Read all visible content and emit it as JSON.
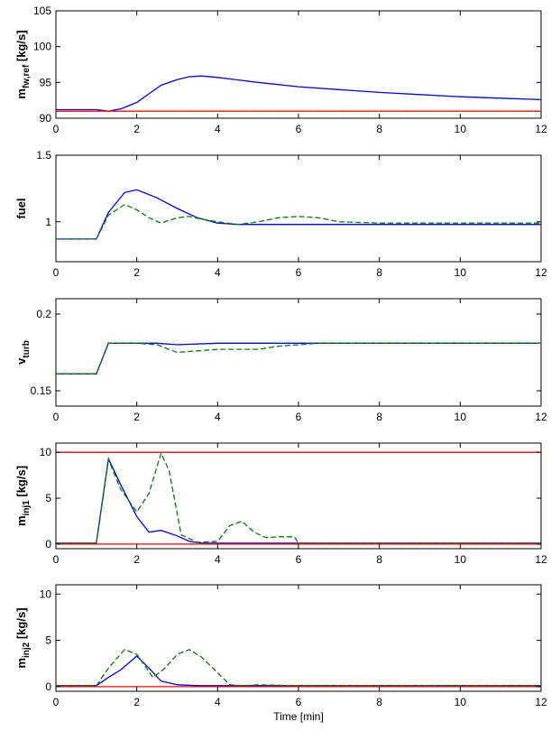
{
  "colors": {
    "model": "#0000ff",
    "plant": "#007f00",
    "constraint": "#ff0000",
    "axes": "#000000",
    "background": "#ffffff"
  },
  "chart_data": [
    {
      "type": "line",
      "ylabel_main": "m",
      "ylabel_sub": "fw,ref",
      "ylabel_unit": "[kg/s]",
      "xlim": [
        0,
        12
      ],
      "ylim": [
        90,
        105
      ],
      "xticks": [
        0,
        2,
        4,
        6,
        8,
        10,
        12
      ],
      "yticks": [
        90,
        95,
        100,
        105
      ],
      "series": [
        {
          "style": "solid",
          "color": "#0000ff",
          "x": [
            0,
            1,
            1.3,
            1.6,
            2,
            2.3,
            2.6,
            3,
            3.3,
            3.6,
            4,
            5,
            6,
            7,
            8,
            9,
            10,
            11,
            12
          ],
          "y": [
            91.2,
            91.2,
            91.0,
            91.3,
            92.2,
            93.4,
            94.6,
            95.4,
            95.8,
            95.9,
            95.7,
            95.0,
            94.4,
            94.0,
            93.6,
            93.3,
            93.0,
            92.8,
            92.6
          ]
        },
        {
          "style": "dashed",
          "color": "#007f00",
          "x": [
            0,
            12
          ],
          "y": [
            91.0,
            91.0
          ]
        },
        {
          "style": "solid",
          "color": "#ff0000",
          "x": [
            0,
            12
          ],
          "y": [
            91.0,
            91.0
          ]
        }
      ]
    },
    {
      "type": "line",
      "ylabel_main": "fuel",
      "ylabel_sub": "",
      "ylabel_unit": "",
      "xlim": [
        0,
        12
      ],
      "ylim": [
        0.7,
        1.5
      ],
      "xticks": [
        0,
        2,
        4,
        6,
        8,
        10,
        12
      ],
      "yticks": [
        1,
        1.5
      ],
      "series": [
        {
          "style": "solid",
          "color": "#0000ff",
          "x": [
            0,
            1,
            1.3,
            1.7,
            2,
            2.5,
            3,
            3.5,
            4,
            4.5,
            5,
            6,
            7,
            8,
            9,
            10,
            11,
            12
          ],
          "y": [
            0.87,
            0.87,
            1.07,
            1.22,
            1.24,
            1.18,
            1.1,
            1.03,
            0.99,
            0.98,
            0.98,
            0.98,
            0.98,
            0.98,
            0.98,
            0.98,
            0.98,
            0.98
          ]
        },
        {
          "style": "dashed",
          "color": "#007f00",
          "x": [
            0,
            1,
            1.3,
            1.7,
            2,
            2.3,
            2.6,
            3,
            3.3,
            3.6,
            4,
            4.5,
            5,
            5.5,
            6,
            6.5,
            7,
            8,
            9,
            10,
            11,
            12
          ],
          "y": [
            0.87,
            0.87,
            1.05,
            1.13,
            1.09,
            1.03,
            0.99,
            1.03,
            1.04,
            1.02,
            1.0,
            0.98,
            1.0,
            1.03,
            1.04,
            1.03,
            1.0,
            0.99,
            0.99,
            0.99,
            0.99,
            0.99
          ]
        }
      ]
    },
    {
      "type": "line",
      "ylabel_main": "v",
      "ylabel_sub": "turb",
      "ylabel_unit": "",
      "xlim": [
        0,
        12
      ],
      "ylim": [
        0.14,
        0.21
      ],
      "xticks": [
        0,
        2,
        4,
        6,
        8,
        10,
        12
      ],
      "yticks": [
        0.15,
        0.2
      ],
      "series": [
        {
          "style": "solid",
          "color": "#0000ff",
          "x": [
            0,
            1,
            1.3,
            2,
            2.5,
            3,
            4,
            5,
            6,
            7,
            8,
            9,
            10,
            11,
            12
          ],
          "y": [
            0.161,
            0.161,
            0.181,
            0.181,
            0.181,
            0.18,
            0.181,
            0.181,
            0.181,
            0.181,
            0.181,
            0.181,
            0.181,
            0.181,
            0.181
          ]
        },
        {
          "style": "dashed",
          "color": "#007f00",
          "x": [
            0,
            1,
            1.3,
            2,
            2.5,
            3,
            3.5,
            4,
            5,
            5.5,
            6,
            6.5,
            7,
            8,
            9,
            10,
            11,
            12
          ],
          "y": [
            0.161,
            0.161,
            0.181,
            0.181,
            0.18,
            0.175,
            0.176,
            0.177,
            0.177,
            0.179,
            0.18,
            0.181,
            0.181,
            0.181,
            0.181,
            0.181,
            0.181,
            0.181
          ]
        }
      ]
    },
    {
      "type": "line",
      "ylabel_main": "m",
      "ylabel_sub": "inj1",
      "ylabel_unit": "[kg/s]",
      "xlim": [
        0,
        12
      ],
      "ylim": [
        -0.5,
        11
      ],
      "xticks": [
        0,
        2,
        4,
        6,
        8,
        10,
        12
      ],
      "yticks": [
        0,
        5,
        10
      ],
      "series": [
        {
          "style": "solid",
          "color": "#0000ff",
          "x": [
            0,
            1,
            1.3,
            1.6,
            2,
            2.3,
            2.6,
            3,
            3.3,
            3.6,
            4,
            12
          ],
          "y": [
            0.1,
            0.1,
            9.3,
            6.5,
            3.0,
            1.3,
            1.5,
            0.9,
            0.3,
            0.1,
            0.1,
            0.1
          ]
        },
        {
          "style": "dashed",
          "color": "#007f00",
          "x": [
            0,
            1,
            1.3,
            1.6,
            2,
            2.3,
            2.6,
            2.8,
            3.1,
            3.5,
            4,
            4.3,
            4.6,
            4.9,
            5.2,
            5.5,
            5.9,
            6,
            12
          ],
          "y": [
            0.1,
            0.1,
            9.2,
            6.0,
            3.5,
            5.5,
            9.9,
            8.0,
            1.0,
            0.2,
            0.3,
            2.0,
            2.5,
            1.3,
            0.7,
            0.8,
            0.8,
            0.1,
            0.1
          ]
        },
        {
          "style": "solid",
          "color": "#ff0000",
          "x": [
            0,
            12
          ],
          "y": [
            10,
            10
          ]
        },
        {
          "style": "solid",
          "color": "#ff0000",
          "x": [
            0,
            12
          ],
          "y": [
            0,
            0
          ]
        }
      ]
    },
    {
      "type": "line",
      "ylabel_main": "m",
      "ylabel_sub": "inj2",
      "ylabel_unit": "[kg/s]",
      "xlabel": "Time [min]",
      "xlim": [
        0,
        12
      ],
      "ylim": [
        -0.5,
        11
      ],
      "xticks": [
        0,
        2,
        4,
        6,
        8,
        10,
        12
      ],
      "yticks": [
        0,
        5,
        10
      ],
      "series": [
        {
          "style": "solid",
          "color": "#0000ff",
          "x": [
            0,
            1,
            1.3,
            1.6,
            2,
            2.3,
            2.6,
            3,
            3.5,
            4,
            12
          ],
          "y": [
            0.1,
            0.1,
            1.0,
            1.8,
            3.3,
            2.0,
            0.6,
            0.2,
            0.1,
            0.1,
            0.1
          ]
        },
        {
          "style": "dashed",
          "color": "#007f00",
          "x": [
            0,
            1,
            1.3,
            1.7,
            2,
            2.4,
            2.7,
            3,
            3.3,
            3.6,
            4,
            4.3,
            4.6,
            5,
            6,
            12
          ],
          "y": [
            0.1,
            0.1,
            2.0,
            4.0,
            3.5,
            1.0,
            2.0,
            3.5,
            4.0,
            3.2,
            1.5,
            0.2,
            0.1,
            0.2,
            0.1,
            0.1
          ]
        },
        {
          "style": "solid",
          "color": "#ff0000",
          "x": [
            0,
            12
          ],
          "y": [
            0,
            0
          ]
        }
      ]
    }
  ]
}
